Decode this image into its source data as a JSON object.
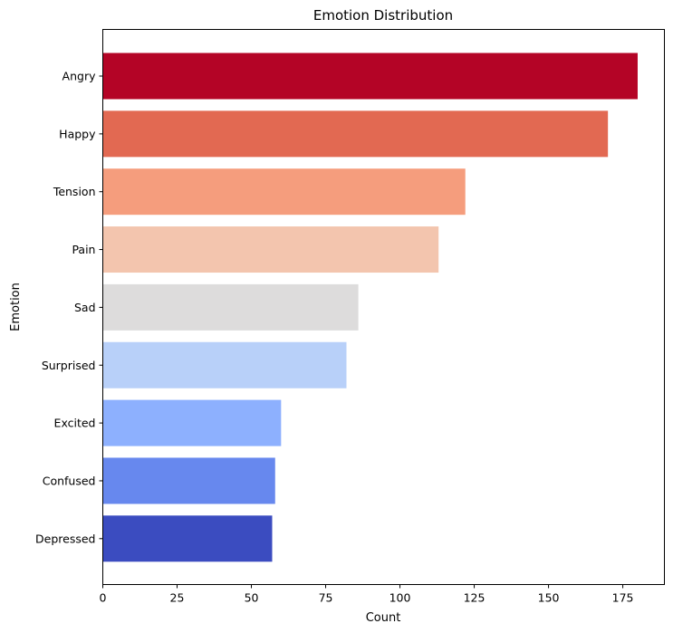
{
  "chart_data": {
    "type": "bar",
    "orientation": "horizontal",
    "title": "Emotion Distribution",
    "xlabel": "Count",
    "ylabel": "Emotion",
    "xlim": [
      0,
      189
    ],
    "xticks": [
      0,
      25,
      50,
      75,
      100,
      125,
      150,
      175
    ],
    "grid": false,
    "categories": [
      "Angry",
      "Happy",
      "Tension",
      "Pain",
      "Sad",
      "Surprised",
      "Excited",
      "Confused",
      "Depressed"
    ],
    "values": [
      180,
      170,
      122,
      113,
      86,
      82,
      60,
      58,
      57
    ],
    "colors": [
      "#b40426",
      "#e26952",
      "#f59d7d",
      "#f3c5ae",
      "#dddcdc",
      "#b8d0f9",
      "#8db0fe",
      "#6788ee",
      "#3b4cc0"
    ]
  }
}
